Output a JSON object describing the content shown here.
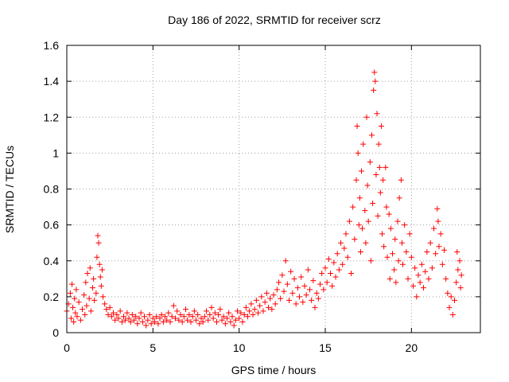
{
  "chart_data": {
    "type": "scatter",
    "title": "Day 186 of 2022, SRMTID for receiver scrz",
    "xlabel": "GPS time / hours",
    "ylabel": "SRMTID / TECUs",
    "xlim": [
      0,
      24
    ],
    "ylim": [
      0,
      1.6
    ],
    "x_ticks": [
      0,
      5,
      10,
      15,
      20
    ],
    "x_tick_labels": [
      "0",
      "5",
      "10",
      "15",
      "20"
    ],
    "y_ticks": [
      0,
      0.2,
      0.4,
      0.6,
      0.8,
      1.0,
      1.2,
      1.4,
      1.6
    ],
    "y_tick_labels": [
      "0",
      "0.2",
      "0.4",
      "0.6",
      "0.8",
      "1",
      "1.2",
      "1.4",
      "1.6"
    ],
    "grid": true,
    "marker": "+",
    "color": "#ff0000",
    "series": [
      {
        "name": "SRMTID",
        "points": [
          [
            0.0,
            0.12
          ],
          [
            0.1,
            0.16
          ],
          [
            0.2,
            0.22
          ],
          [
            0.25,
            0.08
          ],
          [
            0.3,
            0.27
          ],
          [
            0.35,
            0.14
          ],
          [
            0.4,
            0.06
          ],
          [
            0.45,
            0.19
          ],
          [
            0.5,
            0.11
          ],
          [
            0.55,
            0.24
          ],
          [
            0.6,
            0.09
          ],
          [
            0.7,
            0.17
          ],
          [
            0.8,
            0.07
          ],
          [
            0.9,
            0.13
          ],
          [
            1.0,
            0.21
          ],
          [
            1.05,
            0.1
          ],
          [
            1.1,
            0.28
          ],
          [
            1.15,
            0.15
          ],
          [
            1.2,
            0.33
          ],
          [
            1.3,
            0.19
          ],
          [
            1.35,
            0.36
          ],
          [
            1.4,
            0.12
          ],
          [
            1.5,
            0.25
          ],
          [
            1.55,
            0.3
          ],
          [
            1.6,
            0.18
          ],
          [
            1.7,
            0.22
          ],
          [
            1.75,
            0.42
          ],
          [
            1.8,
            0.54
          ],
          [
            1.85,
            0.5
          ],
          [
            1.9,
            0.38
          ],
          [
            1.95,
            0.31
          ],
          [
            2.0,
            0.26
          ],
          [
            2.05,
            0.35
          ],
          [
            2.1,
            0.2
          ],
          [
            2.2,
            0.16
          ],
          [
            2.3,
            0.13
          ],
          [
            2.4,
            0.1
          ],
          [
            2.5,
            0.14
          ],
          [
            2.6,
            0.09
          ],
          [
            2.7,
            0.11
          ],
          [
            2.8,
            0.07
          ],
          [
            2.9,
            0.1
          ],
          [
            3.0,
            0.08
          ],
          [
            3.1,
            0.12
          ],
          [
            3.2,
            0.06
          ],
          [
            3.3,
            0.09
          ],
          [
            3.4,
            0.07
          ],
          [
            3.5,
            0.11
          ],
          [
            3.6,
            0.08
          ],
          [
            3.7,
            0.06
          ],
          [
            3.8,
            0.1
          ],
          [
            3.9,
            0.07
          ],
          [
            4.0,
            0.09
          ],
          [
            4.1,
            0.05
          ],
          [
            4.2,
            0.08
          ],
          [
            4.3,
            0.11
          ],
          [
            4.4,
            0.06
          ],
          [
            4.5,
            0.09
          ],
          [
            4.6,
            0.04
          ],
          [
            4.7,
            0.07
          ],
          [
            4.8,
            0.1
          ],
          [
            4.9,
            0.05
          ],
          [
            5.0,
            0.08
          ],
          [
            5.1,
            0.06
          ],
          [
            5.2,
            0.09
          ],
          [
            5.3,
            0.05
          ],
          [
            5.4,
            0.08
          ],
          [
            5.5,
            0.1
          ],
          [
            5.6,
            0.06
          ],
          [
            5.7,
            0.09
          ],
          [
            5.8,
            0.07
          ],
          [
            5.9,
            0.11
          ],
          [
            6.0,
            0.06
          ],
          [
            6.1,
            0.09
          ],
          [
            6.2,
            0.15
          ],
          [
            6.3,
            0.08
          ],
          [
            6.4,
            0.12
          ],
          [
            6.5,
            0.07
          ],
          [
            6.6,
            0.1
          ],
          [
            6.7,
            0.06
          ],
          [
            6.8,
            0.09
          ],
          [
            6.9,
            0.13
          ],
          [
            7.0,
            0.07
          ],
          [
            7.1,
            0.1
          ],
          [
            7.2,
            0.06
          ],
          [
            7.3,
            0.09
          ],
          [
            7.4,
            0.12
          ],
          [
            7.5,
            0.07
          ],
          [
            7.6,
            0.1
          ],
          [
            7.7,
            0.05
          ],
          [
            7.8,
            0.08
          ],
          [
            7.9,
            0.06
          ],
          [
            8.0,
            0.09
          ],
          [
            8.1,
            0.12
          ],
          [
            8.2,
            0.07
          ],
          [
            8.3,
            0.1
          ],
          [
            8.4,
            0.14
          ],
          [
            8.5,
            0.08
          ],
          [
            8.6,
            0.11
          ],
          [
            8.7,
            0.06
          ],
          [
            8.8,
            0.1
          ],
          [
            8.9,
            0.13
          ],
          [
            9.0,
            0.07
          ],
          [
            9.1,
            0.09
          ],
          [
            9.2,
            0.05
          ],
          [
            9.3,
            0.08
          ],
          [
            9.4,
            0.11
          ],
          [
            9.5,
            0.06
          ],
          [
            9.6,
            0.09
          ],
          [
            9.7,
            0.04
          ],
          [
            9.8,
            0.07
          ],
          [
            9.9,
            0.12
          ],
          [
            10.0,
            0.08
          ],
          [
            10.1,
            0.11
          ],
          [
            10.2,
            0.06
          ],
          [
            10.3,
            0.1
          ],
          [
            10.4,
            0.14
          ],
          [
            10.5,
            0.09
          ],
          [
            10.6,
            0.12
          ],
          [
            10.7,
            0.16
          ],
          [
            10.8,
            0.1
          ],
          [
            10.9,
            0.13
          ],
          [
            11.0,
            0.18
          ],
          [
            11.1,
            0.11
          ],
          [
            11.2,
            0.15
          ],
          [
            11.3,
            0.2
          ],
          [
            11.4,
            0.12
          ],
          [
            11.5,
            0.17
          ],
          [
            11.6,
            0.22
          ],
          [
            11.7,
            0.14
          ],
          [
            11.8,
            0.19
          ],
          [
            11.9,
            0.13
          ],
          [
            12.0,
            0.21
          ],
          [
            12.1,
            0.16
          ],
          [
            12.2,
            0.24
          ],
          [
            12.3,
            0.28
          ],
          [
            12.4,
            0.19
          ],
          [
            12.5,
            0.32
          ],
          [
            12.6,
            0.23
          ],
          [
            12.7,
            0.4
          ],
          [
            12.8,
            0.27
          ],
          [
            12.9,
            0.18
          ],
          [
            13.0,
            0.34
          ],
          [
            13.1,
            0.22
          ],
          [
            13.2,
            0.3
          ],
          [
            13.3,
            0.16
          ],
          [
            13.4,
            0.25
          ],
          [
            13.5,
            0.2
          ],
          [
            13.6,
            0.31
          ],
          [
            13.7,
            0.17
          ],
          [
            13.8,
            0.26
          ],
          [
            13.9,
            0.21
          ],
          [
            14.0,
            0.35
          ],
          [
            14.1,
            0.24
          ],
          [
            14.2,
            0.18
          ],
          [
            14.3,
            0.29
          ],
          [
            14.4,
            0.14
          ],
          [
            14.5,
            0.22
          ],
          [
            14.6,
            0.19
          ],
          [
            14.7,
            0.27
          ],
          [
            14.8,
            0.33
          ],
          [
            14.9,
            0.24
          ],
          [
            15.0,
            0.36
          ],
          [
            15.1,
            0.28
          ],
          [
            15.2,
            0.41
          ],
          [
            15.3,
            0.33
          ],
          [
            15.4,
            0.26
          ],
          [
            15.5,
            0.39
          ],
          [
            15.6,
            0.31
          ],
          [
            15.7,
            0.44
          ],
          [
            15.8,
            0.35
          ],
          [
            15.9,
            0.5
          ],
          [
            16.0,
            0.38
          ],
          [
            16.1,
            0.47
          ],
          [
            16.2,
            0.55
          ],
          [
            16.3,
            0.42
          ],
          [
            16.4,
            0.62
          ],
          [
            16.5,
            0.33
          ],
          [
            16.6,
            0.7
          ],
          [
            16.7,
            0.52
          ],
          [
            16.8,
            0.85
          ],
          [
            16.85,
            1.15
          ],
          [
            16.9,
            1.0
          ],
          [
            16.95,
            0.6
          ],
          [
            17.0,
            0.75
          ],
          [
            17.05,
            0.45
          ],
          [
            17.1,
            0.9
          ],
          [
            17.15,
            0.58
          ],
          [
            17.2,
            1.05
          ],
          [
            17.3,
            0.68
          ],
          [
            17.35,
            0.5
          ],
          [
            17.4,
            1.2
          ],
          [
            17.45,
            0.82
          ],
          [
            17.5,
            0.62
          ],
          [
            17.6,
            0.95
          ],
          [
            17.65,
            0.4
          ],
          [
            17.7,
            1.1
          ],
          [
            17.75,
            0.72
          ],
          [
            17.8,
            1.35
          ],
          [
            17.85,
            1.45
          ],
          [
            17.9,
            1.4
          ],
          [
            17.95,
            0.88
          ],
          [
            18.0,
            1.22
          ],
          [
            18.05,
            0.65
          ],
          [
            18.1,
            1.05
          ],
          [
            18.15,
            0.92
          ],
          [
            18.2,
            0.78
          ],
          [
            18.25,
            1.15
          ],
          [
            18.3,
            0.55
          ],
          [
            18.35,
            0.85
          ],
          [
            18.4,
            0.48
          ],
          [
            18.5,
            0.92
          ],
          [
            18.55,
            0.7
          ],
          [
            18.6,
            0.42
          ],
          [
            18.7,
            0.66
          ],
          [
            18.75,
            0.3
          ],
          [
            18.8,
            0.58
          ],
          [
            18.9,
            0.44
          ],
          [
            19.0,
            0.35
          ],
          [
            19.05,
            0.52
          ],
          [
            19.1,
            0.28
          ],
          [
            19.2,
            0.62
          ],
          [
            19.25,
            0.4
          ],
          [
            19.3,
            0.75
          ],
          [
            19.4,
            0.85
          ],
          [
            19.45,
            0.5
          ],
          [
            19.5,
            0.38
          ],
          [
            19.6,
            0.6
          ],
          [
            19.7,
            0.45
          ],
          [
            19.8,
            0.3
          ],
          [
            19.9,
            0.55
          ],
          [
            20.0,
            0.42
          ],
          [
            20.1,
            0.26
          ],
          [
            20.2,
            0.36
          ],
          [
            20.3,
            0.2
          ],
          [
            20.4,
            0.32
          ],
          [
            20.5,
            0.28
          ],
          [
            20.6,
            0.38
          ],
          [
            20.7,
            0.25
          ],
          [
            20.8,
            0.34
          ],
          [
            20.9,
            0.45
          ],
          [
            21.0,
            0.3
          ],
          [
            21.1,
            0.5
          ],
          [
            21.2,
            0.36
          ],
          [
            21.3,
            0.58
          ],
          [
            21.4,
            0.44
          ],
          [
            21.5,
            0.69
          ],
          [
            21.55,
            0.62
          ],
          [
            21.6,
            0.48
          ],
          [
            21.7,
            0.55
          ],
          [
            21.8,
            0.38
          ],
          [
            21.9,
            0.46
          ],
          [
            22.0,
            0.3
          ],
          [
            22.1,
            0.22
          ],
          [
            22.2,
            0.14
          ],
          [
            22.3,
            0.2
          ],
          [
            22.4,
            0.1
          ],
          [
            22.5,
            0.18
          ],
          [
            22.6,
            0.28
          ],
          [
            22.65,
            0.45
          ],
          [
            22.7,
            0.35
          ],
          [
            22.8,
            0.4
          ],
          [
            22.85,
            0.25
          ],
          [
            22.9,
            0.32
          ]
        ]
      }
    ]
  }
}
